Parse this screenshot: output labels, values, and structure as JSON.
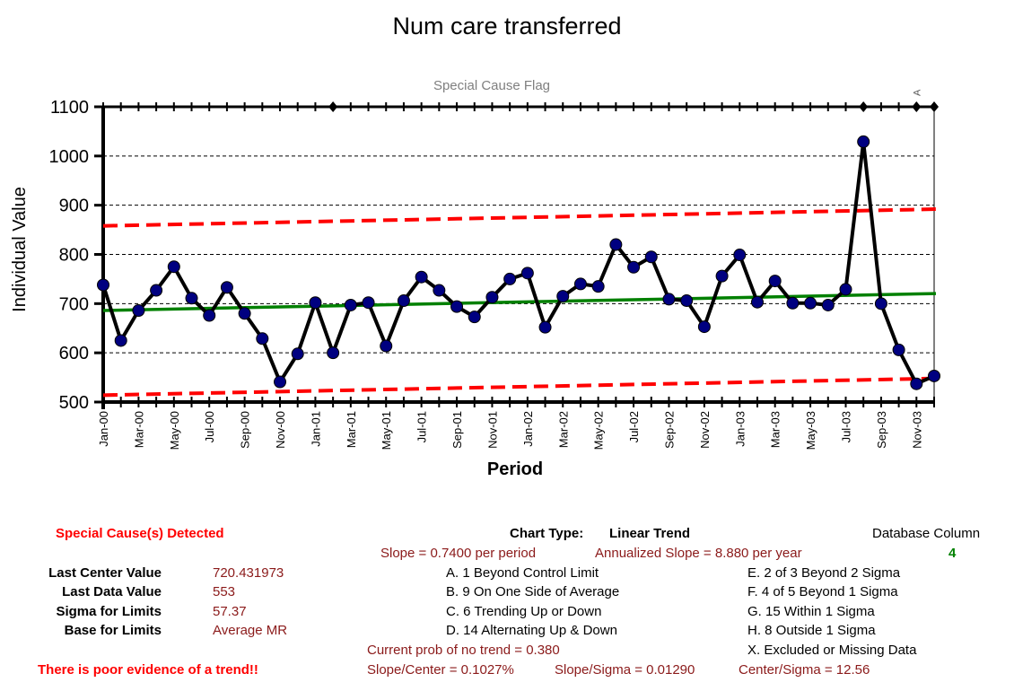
{
  "chart_data": {
    "type": "line",
    "title": "Num care transferred",
    "subtitle": "Special Cause Flag",
    "xlabel": "Period",
    "ylabel": "Individual Value",
    "ylim": [
      500,
      1100
    ],
    "yticks": [
      500,
      600,
      700,
      800,
      900,
      1000,
      1100
    ],
    "grid": true,
    "x": [
      "Jan-00",
      "Feb-00",
      "Mar-00",
      "Apr-00",
      "May-00",
      "Jun-00",
      "Jul-00",
      "Aug-00",
      "Sep-00",
      "Oct-00",
      "Nov-00",
      "Dec-00",
      "Jan-01",
      "Feb-01",
      "Mar-01",
      "Apr-01",
      "May-01",
      "Jun-01",
      "Jul-01",
      "Aug-01",
      "Sep-01",
      "Oct-01",
      "Nov-01",
      "Dec-01",
      "Jan-02",
      "Feb-02",
      "Mar-02",
      "Apr-02",
      "May-02",
      "Jun-02",
      "Jul-02",
      "Aug-02",
      "Sep-02",
      "Oct-02",
      "Nov-02",
      "Dec-02",
      "Jan-03",
      "Feb-03",
      "Mar-03",
      "Apr-03",
      "May-03",
      "Jun-03",
      "Jul-03",
      "Aug-03",
      "Sep-03",
      "Oct-03",
      "Nov-03",
      "Dec-03"
    ],
    "x_tick_labels": [
      "Jan-00",
      "Mar-00",
      "May-00",
      "Jul-00",
      "Sep-00",
      "Nov-00",
      "Jan-01",
      "Mar-01",
      "May-01",
      "Jul-01",
      "Sep-01",
      "Nov-01",
      "Jan-02",
      "Mar-02",
      "May-02",
      "Jul-02",
      "Sep-02",
      "Nov-02",
      "Jan-03",
      "Mar-03",
      "May-03",
      "Jul-03",
      "Sep-03",
      "Nov-03"
    ],
    "series": [
      {
        "name": "Individual Value",
        "color": "#000000",
        "marker_color": "#000080",
        "values": [
          738,
          625,
          686,
          727,
          775,
          711,
          676,
          733,
          680,
          629,
          541,
          598,
          702,
          600,
          697,
          702,
          614,
          706,
          754,
          727,
          694,
          673,
          713,
          750,
          762,
          652,
          715,
          740,
          735,
          820,
          774,
          795,
          709,
          706,
          653,
          756,
          799,
          703,
          746,
          701,
          701,
          697,
          729,
          1029,
          700,
          606,
          537,
          553
        ]
      },
      {
        "name": "Center",
        "color": "#008000",
        "start": 686,
        "end": 720.431973
      },
      {
        "name": "UCL",
        "color": "#ff0000",
        "start": 858,
        "end": 892
      },
      {
        "name": "LCL",
        "color": "#ff0000",
        "start": 514,
        "end": 548
      }
    ],
    "special_cause_flags": [
      {
        "index": 13,
        "label": ""
      },
      {
        "index": 43,
        "label": ""
      },
      {
        "index": 46,
        "label": "A"
      },
      {
        "index": 47,
        "label": ""
      }
    ]
  },
  "stats": {
    "special_cause_detected": "Special Cause(s) Detected",
    "last_center_label": "Last Center Value",
    "last_center_value": "720.431973",
    "last_data_label": "Last Data Value",
    "last_data_value": "553",
    "sigma_label": "Sigma for Limits",
    "sigma_value": "57.37",
    "base_label": "Base for Limits",
    "base_value": "Average MR",
    "trend_warning": "There is poor evidence of a trend!!"
  },
  "chart_info": {
    "chart_type_label": "Chart Type:",
    "chart_type_value": "Linear Trend",
    "slope": "Slope = 0.7400 per period",
    "annualized_slope": "Annualized Slope = 8.880 per year",
    "rule_a": "A.  1 Beyond Control Limit",
    "rule_b": "B.  9 On One Side of Average",
    "rule_c": "C.  6 Trending Up or Down",
    "rule_d": "D.  14 Alternating  Up & Down",
    "rule_e": "E.   2 of 3 Beyond 2 Sigma",
    "rule_f": "F.   4 of 5 Beyond 1 Sigma",
    "rule_g": "G.   15 Within 1 Sigma",
    "rule_h": "H.   8 Outside 1 Sigma",
    "rule_x": "X.   Excluded or Missing Data",
    "prob_no_trend": "Current prob of no trend = 0.380",
    "slope_center": "Slope/Center = 0.1027%",
    "slope_sigma": "Slope/Sigma = 0.01290",
    "center_sigma": "Center/Sigma = 12.56",
    "db_column_label": "Database Column",
    "db_column_value": "4"
  }
}
